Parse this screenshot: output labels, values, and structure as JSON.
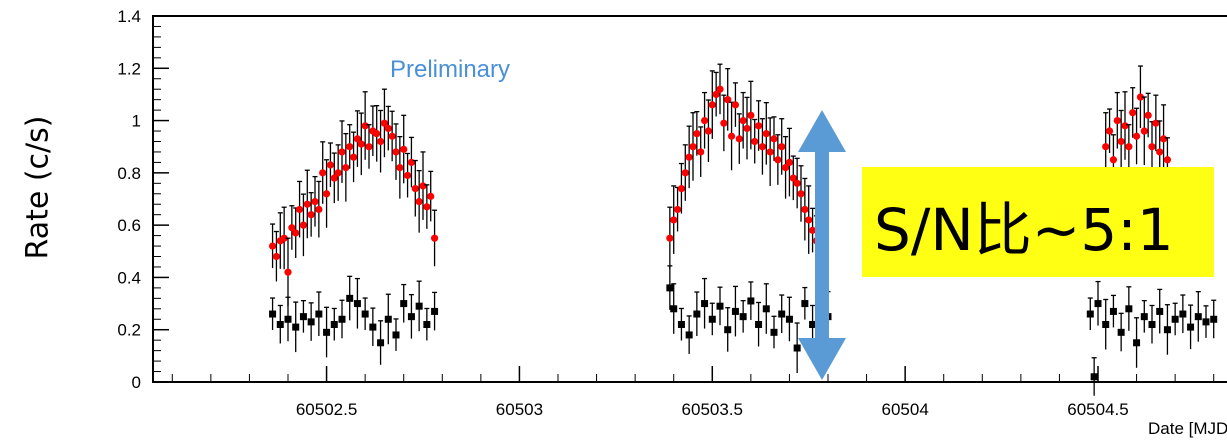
{
  "chart_data": {
    "type": "scatter",
    "xlabel": "Date [MJD",
    "ylabel": "Rate (c/s)",
    "xlim": [
      60502.05,
      60504.85
    ],
    "ylim": [
      0,
      1.4
    ],
    "x_tick_labels": [
      "60502.5",
      "60503",
      "60503.5",
      "60504",
      "60504.5"
    ],
    "x_tick_values": [
      60502.5,
      60503,
      60503.5,
      60504,
      60504.5
    ],
    "y_tick_labels": [
      "0",
      "0.2",
      "0.4",
      "0.6",
      "0.8",
      "1",
      "1.2",
      "1.4"
    ],
    "y_tick_values": [
      0,
      0.2,
      0.4,
      0.6,
      0.8,
      1.0,
      1.2,
      1.4
    ],
    "grid": false,
    "annotations": {
      "preliminary": "Preliminary",
      "sn_ratio": "S/N比~5:1"
    },
    "series": [
      {
        "marker": "circle",
        "color": "#ff0000",
        "points": [
          [
            60502.36,
            0.52
          ],
          [
            60502.37,
            0.48
          ],
          [
            60502.38,
            0.54
          ],
          [
            60502.39,
            0.55
          ],
          [
            60502.4,
            0.42
          ],
          [
            60502.41,
            0.59
          ],
          [
            60502.42,
            0.57
          ],
          [
            60502.43,
            0.66
          ],
          [
            60502.44,
            0.6
          ],
          [
            60502.45,
            0.68
          ],
          [
            60502.46,
            0.64
          ],
          [
            60502.47,
            0.69
          ],
          [
            60502.48,
            0.66
          ],
          [
            60502.49,
            0.8
          ],
          [
            60502.5,
            0.72
          ],
          [
            60502.51,
            0.83
          ],
          [
            60502.52,
            0.78
          ],
          [
            60502.53,
            0.8
          ],
          [
            60502.54,
            0.88
          ],
          [
            60502.55,
            0.82
          ],
          [
            60502.56,
            0.9
          ],
          [
            60502.57,
            0.86
          ],
          [
            60502.58,
            0.93
          ],
          [
            60502.59,
            0.91
          ],
          [
            60502.6,
            0.98
          ],
          [
            60502.61,
            0.9
          ],
          [
            60502.62,
            0.96
          ],
          [
            60502.63,
            0.95
          ],
          [
            60502.64,
            0.92
          ],
          [
            60502.65,
            0.99
          ],
          [
            60502.66,
            0.97
          ],
          [
            60502.67,
            0.94
          ],
          [
            60502.68,
            0.88
          ],
          [
            60502.69,
            0.82
          ],
          [
            60502.7,
            0.89
          ],
          [
            60502.71,
            0.79
          ],
          [
            60502.72,
            0.84
          ],
          [
            60502.73,
            0.74
          ],
          [
            60502.74,
            0.69
          ],
          [
            60502.75,
            0.75
          ],
          [
            60502.76,
            0.67
          ],
          [
            60502.77,
            0.71
          ],
          [
            60502.78,
            0.55
          ],
          [
            60503.39,
            0.55
          ],
          [
            60503.4,
            0.62
          ],
          [
            60503.41,
            0.66
          ],
          [
            60503.42,
            0.74
          ],
          [
            60503.43,
            0.8
          ],
          [
            60503.44,
            0.86
          ],
          [
            60503.45,
            0.9
          ],
          [
            60503.46,
            0.95
          ],
          [
            60503.47,
            0.88
          ],
          [
            60503.48,
            1.0
          ],
          [
            60503.49,
            0.96
          ],
          [
            60503.5,
            1.06
          ],
          [
            60503.51,
            1.1
          ],
          [
            60503.52,
            1.12
          ],
          [
            60503.53,
            0.99
          ],
          [
            60503.54,
            1.08
          ],
          [
            60503.55,
            0.94
          ],
          [
            60503.56,
            1.06
          ],
          [
            60503.57,
            0.93
          ],
          [
            60503.58,
            1.0
          ],
          [
            60503.59,
            0.97
          ],
          [
            60503.6,
            1.02
          ],
          [
            60503.61,
            0.92
          ],
          [
            60503.62,
            0.98
          ],
          [
            60503.63,
            0.9
          ],
          [
            60503.64,
            0.95
          ],
          [
            60503.65,
            0.88
          ],
          [
            60503.66,
            0.93
          ],
          [
            60503.67,
            0.85
          ],
          [
            60503.68,
            0.9
          ],
          [
            60503.69,
            0.82
          ],
          [
            60503.7,
            0.84
          ],
          [
            60503.71,
            0.78
          ],
          [
            60503.72,
            0.76
          ],
          [
            60503.73,
            0.72
          ],
          [
            60503.74,
            0.66
          ],
          [
            60503.75,
            0.62
          ],
          [
            60503.76,
            0.58
          ],
          [
            60503.77,
            0.54
          ],
          [
            60503.78,
            0.5
          ],
          [
            60503.79,
            0.47
          ],
          [
            60504.52,
            0.9
          ],
          [
            60504.53,
            0.96
          ],
          [
            60504.54,
            0.85
          ],
          [
            60504.55,
            1.0
          ],
          [
            60504.56,
            0.92
          ],
          [
            60504.57,
            0.98
          ],
          [
            60504.58,
            0.9
          ],
          [
            60504.59,
            1.03
          ],
          [
            60504.6,
            0.94
          ],
          [
            60504.61,
            1.09
          ],
          [
            60504.62,
            0.96
          ],
          [
            60504.63,
            1.02
          ],
          [
            60504.64,
            0.9
          ],
          [
            60504.65,
            0.99
          ],
          [
            60504.66,
            0.88
          ],
          [
            60504.67,
            0.93
          ],
          [
            60504.68,
            0.85
          ]
        ]
      },
      {
        "marker": "square",
        "color": "#000000",
        "points": [
          [
            60502.36,
            0.26
          ],
          [
            60502.38,
            0.22
          ],
          [
            60502.4,
            0.24
          ],
          [
            60502.42,
            0.21
          ],
          [
            60502.44,
            0.25
          ],
          [
            60502.46,
            0.23
          ],
          [
            60502.48,
            0.26
          ],
          [
            60502.5,
            0.19
          ],
          [
            60502.52,
            0.22
          ],
          [
            60502.54,
            0.24
          ],
          [
            60502.56,
            0.32
          ],
          [
            60502.58,
            0.3
          ],
          [
            60502.6,
            0.26
          ],
          [
            60502.62,
            0.21
          ],
          [
            60502.64,
            0.15
          ],
          [
            60502.66,
            0.24
          ],
          [
            60502.68,
            0.18
          ],
          [
            60502.7,
            0.3
          ],
          [
            60502.72,
            0.25
          ],
          [
            60502.74,
            0.29
          ],
          [
            60502.76,
            0.22
          ],
          [
            60502.78,
            0.27
          ],
          [
            60503.39,
            0.36
          ],
          [
            60503.4,
            0.28
          ],
          [
            60503.42,
            0.22
          ],
          [
            60503.44,
            0.18
          ],
          [
            60503.46,
            0.26
          ],
          [
            60503.48,
            0.3
          ],
          [
            60503.5,
            0.24
          ],
          [
            60503.52,
            0.29
          ],
          [
            60503.54,
            0.2
          ],
          [
            60503.56,
            0.27
          ],
          [
            60503.58,
            0.25
          ],
          [
            60503.6,
            0.31
          ],
          [
            60503.62,
            0.22
          ],
          [
            60503.64,
            0.28
          ],
          [
            60503.66,
            0.19
          ],
          [
            60503.68,
            0.26
          ],
          [
            60503.7,
            0.24
          ],
          [
            60503.72,
            0.13
          ],
          [
            60503.74,
            0.3
          ],
          [
            60503.76,
            0.22
          ],
          [
            60503.78,
            0.27
          ],
          [
            60503.8,
            0.25
          ],
          [
            60504.48,
            0.26
          ],
          [
            60504.49,
            0.02
          ],
          [
            60504.5,
            0.3
          ],
          [
            60504.52,
            0.22
          ],
          [
            60504.54,
            0.27
          ],
          [
            60504.56,
            0.19
          ],
          [
            60504.58,
            0.28
          ],
          [
            60504.6,
            0.15
          ],
          [
            60504.62,
            0.25
          ],
          [
            60504.64,
            0.22
          ],
          [
            60504.66,
            0.27
          ],
          [
            60504.68,
            0.2
          ],
          [
            60504.7,
            0.24
          ],
          [
            60504.72,
            0.26
          ],
          [
            60504.74,
            0.21
          ],
          [
            60504.76,
            0.25
          ],
          [
            60504.78,
            0.23
          ],
          [
            60504.8,
            0.24
          ]
        ]
      }
    ]
  }
}
